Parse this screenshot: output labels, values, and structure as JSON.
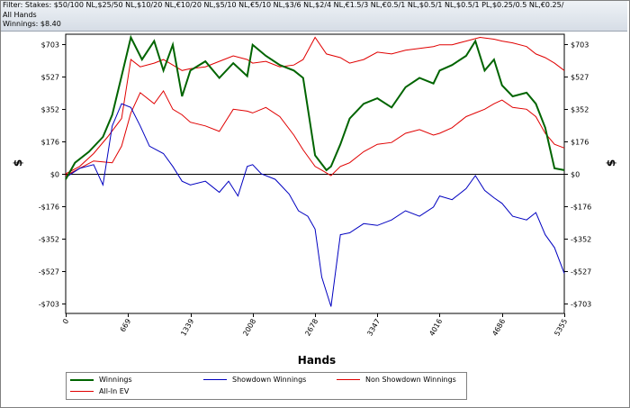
{
  "info": {
    "filter": "Filter: Stakes: $50/100 NL,$25/50 NL,$10/20 NL,€10/20 NL,$5/10 NL,€5/10 NL,$3/6 NL,$2/4 NL,€1.5/3 NL,€0.5/1 NL,$0.5/1 NL,$0.5/1 PL,$0.25/0.5 NL,€0.25/",
    "hands": "All Hands",
    "winnings": "Winnings: $8.40"
  },
  "chart_data": {
    "type": "line",
    "xlabel": "Hands",
    "ylabel": "$",
    "x_ticks": [
      "0",
      "669",
      "1339",
      "2008",
      "2678",
      "3347",
      "4016",
      "4686",
      "5355"
    ],
    "y_ticks": [
      "$703",
      "$527",
      "$352",
      "$176",
      "$0",
      "-$176",
      "-$352",
      "-$527",
      "-$703"
    ],
    "xlim": [
      0,
      5355
    ],
    "ylim": [
      -757,
      757
    ],
    "grid": true,
    "legend_position": "bottom",
    "series": [
      {
        "name": "Winnings",
        "color": "#006400",
        "points": [
          [
            0,
            -30
          ],
          [
            100,
            60
          ],
          [
            250,
            120
          ],
          [
            400,
            200
          ],
          [
            500,
            320
          ],
          [
            600,
            530
          ],
          [
            700,
            740
          ],
          [
            820,
            620
          ],
          [
            950,
            720
          ],
          [
            1050,
            560
          ],
          [
            1150,
            700
          ],
          [
            1250,
            420
          ],
          [
            1339,
            560
          ],
          [
            1500,
            610
          ],
          [
            1650,
            520
          ],
          [
            1800,
            600
          ],
          [
            1950,
            530
          ],
          [
            2008,
            700
          ],
          [
            2150,
            640
          ],
          [
            2300,
            590
          ],
          [
            2450,
            560
          ],
          [
            2550,
            520
          ],
          [
            2678,
            100
          ],
          [
            2800,
            20
          ],
          [
            2850,
            40
          ],
          [
            2950,
            160
          ],
          [
            3050,
            300
          ],
          [
            3200,
            380
          ],
          [
            3347,
            410
          ],
          [
            3500,
            360
          ],
          [
            3650,
            470
          ],
          [
            3800,
            520
          ],
          [
            3950,
            490
          ],
          [
            4016,
            560
          ],
          [
            4150,
            590
          ],
          [
            4300,
            640
          ],
          [
            4400,
            720
          ],
          [
            4500,
            560
          ],
          [
            4600,
            620
          ],
          [
            4686,
            480
          ],
          [
            4800,
            420
          ],
          [
            4950,
            440
          ],
          [
            5050,
            380
          ],
          [
            5150,
            250
          ],
          [
            5250,
            30
          ],
          [
            5355,
            20
          ]
        ]
      },
      {
        "name": "Showdown Winnings",
        "color": "#0000c0",
        "points": [
          [
            0,
            -20
          ],
          [
            150,
            30
          ],
          [
            300,
            50
          ],
          [
            400,
            -60
          ],
          [
            500,
            260
          ],
          [
            600,
            380
          ],
          [
            700,
            360
          ],
          [
            800,
            260
          ],
          [
            900,
            150
          ],
          [
            1050,
            110
          ],
          [
            1150,
            40
          ],
          [
            1250,
            -40
          ],
          [
            1339,
            -60
          ],
          [
            1500,
            -40
          ],
          [
            1650,
            -100
          ],
          [
            1750,
            -40
          ],
          [
            1850,
            -120
          ],
          [
            1950,
            40
          ],
          [
            2008,
            50
          ],
          [
            2100,
            0
          ],
          [
            2250,
            -30
          ],
          [
            2400,
            -110
          ],
          [
            2500,
            -200
          ],
          [
            2600,
            -230
          ],
          [
            2678,
            -300
          ],
          [
            2750,
            -560
          ],
          [
            2850,
            -720
          ],
          [
            2950,
            -330
          ],
          [
            3050,
            -320
          ],
          [
            3200,
            -270
          ],
          [
            3347,
            -280
          ],
          [
            3500,
            -250
          ],
          [
            3650,
            -200
          ],
          [
            3800,
            -230
          ],
          [
            3950,
            -180
          ],
          [
            4016,
            -120
          ],
          [
            4150,
            -140
          ],
          [
            4300,
            -80
          ],
          [
            4400,
            -10
          ],
          [
            4500,
            -90
          ],
          [
            4600,
            -130
          ],
          [
            4686,
            -160
          ],
          [
            4800,
            -230
          ],
          [
            4950,
            -250
          ],
          [
            5050,
            -210
          ],
          [
            5150,
            -330
          ],
          [
            5250,
            -400
          ],
          [
            5355,
            -540
          ]
        ]
      },
      {
        "name": "Non Showdown Winnings",
        "color": "#e00000",
        "points": [
          [
            0,
            -10
          ],
          [
            150,
            30
          ],
          [
            300,
            70
          ],
          [
            500,
            60
          ],
          [
            600,
            150
          ],
          [
            700,
            330
          ],
          [
            800,
            440
          ],
          [
            950,
            380
          ],
          [
            1050,
            450
          ],
          [
            1150,
            350
          ],
          [
            1250,
            320
          ],
          [
            1339,
            280
          ],
          [
            1500,
            260
          ],
          [
            1650,
            230
          ],
          [
            1800,
            350
          ],
          [
            1950,
            340
          ],
          [
            2008,
            330
          ],
          [
            2150,
            360
          ],
          [
            2300,
            310
          ],
          [
            2450,
            210
          ],
          [
            2550,
            130
          ],
          [
            2678,
            40
          ],
          [
            2750,
            20
          ],
          [
            2850,
            -10
          ],
          [
            2950,
            40
          ],
          [
            3050,
            60
          ],
          [
            3200,
            120
          ],
          [
            3347,
            160
          ],
          [
            3500,
            170
          ],
          [
            3650,
            220
          ],
          [
            3800,
            240
          ],
          [
            3950,
            210
          ],
          [
            4016,
            220
          ],
          [
            4150,
            250
          ],
          [
            4300,
            310
          ],
          [
            4400,
            330
          ],
          [
            4500,
            350
          ],
          [
            4600,
            380
          ],
          [
            4686,
            400
          ],
          [
            4800,
            360
          ],
          [
            4950,
            350
          ],
          [
            5050,
            310
          ],
          [
            5150,
            220
          ],
          [
            5250,
            160
          ],
          [
            5355,
            140
          ]
        ]
      },
      {
        "name": "All-In EV",
        "color": "#e00000",
        "points": [
          [
            0,
            0
          ],
          [
            150,
            40
          ],
          [
            300,
            110
          ],
          [
            450,
            200
          ],
          [
            600,
            300
          ],
          [
            700,
            620
          ],
          [
            800,
            580
          ],
          [
            950,
            600
          ],
          [
            1050,
            620
          ],
          [
            1150,
            590
          ],
          [
            1250,
            560
          ],
          [
            1339,
            570
          ],
          [
            1500,
            580
          ],
          [
            1650,
            610
          ],
          [
            1800,
            640
          ],
          [
            1950,
            620
          ],
          [
            2008,
            600
          ],
          [
            2150,
            610
          ],
          [
            2300,
            580
          ],
          [
            2450,
            590
          ],
          [
            2550,
            620
          ],
          [
            2678,
            740
          ],
          [
            2800,
            650
          ],
          [
            2950,
            630
          ],
          [
            3050,
            600
          ],
          [
            3200,
            620
          ],
          [
            3347,
            660
          ],
          [
            3500,
            650
          ],
          [
            3650,
            670
          ],
          [
            3800,
            680
          ],
          [
            3950,
            690
          ],
          [
            4016,
            700
          ],
          [
            4150,
            700
          ],
          [
            4300,
            720
          ],
          [
            4450,
            740
          ],
          [
            4600,
            730
          ],
          [
            4686,
            720
          ],
          [
            4800,
            710
          ],
          [
            4950,
            690
          ],
          [
            5050,
            650
          ],
          [
            5150,
            630
          ],
          [
            5250,
            600
          ],
          [
            5355,
            560
          ]
        ]
      }
    ]
  }
}
